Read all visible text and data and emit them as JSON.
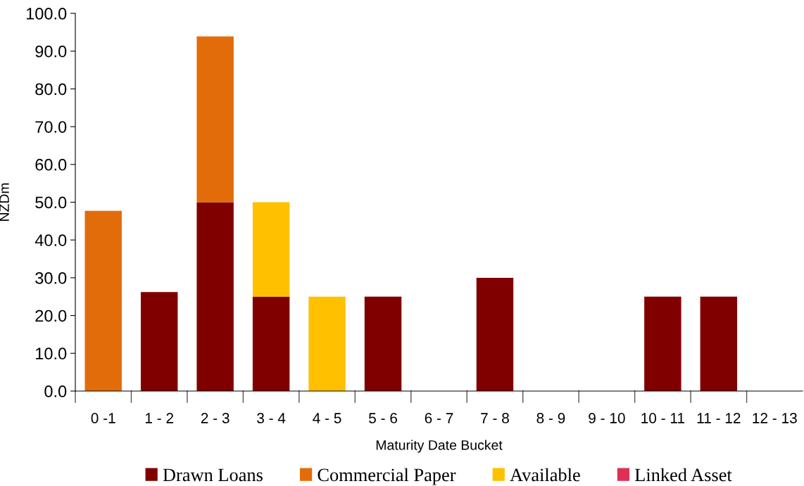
{
  "chart_data": {
    "type": "bar",
    "stacked": true,
    "xlabel": "Maturity Date Bucket",
    "ylabel": "NZDm",
    "categories": [
      "0 -1",
      "1 - 2",
      "2 - 3",
      "3 - 4",
      "4 - 5",
      "5 - 6",
      "6 - 7",
      "7 - 8",
      "8 - 9",
      "9 - 10",
      "10 - 11",
      "11 - 12",
      "12 - 13"
    ],
    "series": [
      {
        "name": "Drawn Loans",
        "color": "#800000",
        "values": [
          0,
          26.2,
          50,
          25,
          0,
          25,
          0,
          30,
          0,
          0,
          25,
          25,
          0
        ]
      },
      {
        "name": "Commercial Paper",
        "color": "#e36c0a",
        "values": [
          47.7,
          0,
          43.9,
          0,
          0,
          0,
          0,
          0,
          0,
          0,
          0,
          0,
          0
        ]
      },
      {
        "name": "Available",
        "color": "#ffc000",
        "values": [
          0,
          0,
          0,
          25,
          25,
          0,
          0,
          0,
          0,
          0,
          0,
          0,
          0
        ]
      },
      {
        "name": "Linked Asset",
        "color": "#dc3057",
        "values": [
          0,
          0,
          0,
          0,
          0,
          0,
          0,
          0,
          0,
          0,
          0,
          0,
          0
        ]
      }
    ],
    "ylim": [
      0,
      100
    ],
    "yticks": [
      {
        "value": 0,
        "label": "0.0"
      },
      {
        "value": 10,
        "label": "10.0"
      },
      {
        "value": 20,
        "label": "20.0"
      },
      {
        "value": 30,
        "label": "30.0"
      },
      {
        "value": 40,
        "label": "40.0"
      },
      {
        "value": 50,
        "label": "50.0"
      },
      {
        "value": 60,
        "label": "60.0"
      },
      {
        "value": 70,
        "label": "70.0"
      },
      {
        "value": 80,
        "label": "80.0"
      },
      {
        "value": 90,
        "label": "90.0"
      },
      {
        "value": 100,
        "label": "100.0"
      }
    ],
    "grid": false,
    "legend": "bottom"
  }
}
